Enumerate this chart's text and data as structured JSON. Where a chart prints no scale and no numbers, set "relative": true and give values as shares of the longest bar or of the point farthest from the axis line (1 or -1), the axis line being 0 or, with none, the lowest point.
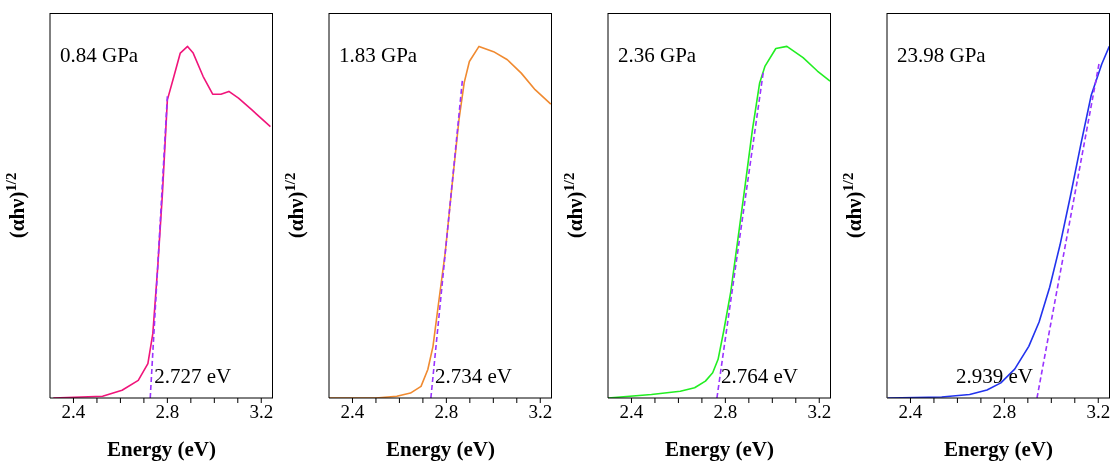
{
  "chart_data": [
    {
      "type": "line",
      "xlabel": "Energy (eV)",
      "ylabel": "(αhν)$^{1/2}$",
      "relative": true,
      "marker": "none",
      "xlim": [
        2.3,
        3.25
      ],
      "xticks": [
        2.4,
        {
          "value": 2.5,
          "label": null
        },
        {
          "value": 2.6,
          "label": null
        },
        {
          "value": 2.7,
          "label": null
        },
        2.8,
        {
          "value": 2.9,
          "label": null
        },
        {
          "value": 3.0,
          "label": null
        },
        {
          "value": 3.1,
          "label": null
        },
        3.2
      ],
      "x": [
        2.314,
        2.524,
        2.607,
        2.676,
        2.717,
        2.738,
        2.759,
        2.779,
        2.8,
        2.828,
        2.855,
        2.886,
        2.91,
        2.952,
        2.993,
        3.028,
        3.062,
        3.103,
        3.159,
        3.239
      ],
      "series": [
        {
          "color": "#f0147a",
          "values": [
            0,
            0.005,
            0.022,
            0.05,
            0.098,
            0.183,
            0.373,
            0.582,
            0.848,
            0.915,
            0.981,
            1.0,
            0.981,
            0.915,
            0.864,
            0.864,
            0.872,
            0.853,
            0.82,
            0.772
          ]
        },
        {
          "type": "line",
          "color": "#9933ff",
          "line_style": "dashed",
          "x": [
            2.727,
            2.8
          ],
          "values": [
            0,
            0.858
          ]
        }
      ],
      "annotations": [
        "0.84 GPa",
        {
          "text": "2.727 eV",
          "x": 2.727,
          "y": 0
        }
      ]
    },
    {
      "type": "line",
      "xlabel": "Energy (eV)",
      "ylabel": "(αhν)$^{1/2}$",
      "relative": true,
      "marker": "none",
      "xlim": [
        2.3,
        3.25
      ],
      "xticks": [
        2.4,
        {
          "value": 2.5,
          "label": null
        },
        {
          "value": 2.6,
          "label": null
        },
        {
          "value": 2.7,
          "label": null
        },
        2.8,
        {
          "value": 2.9,
          "label": null
        },
        {
          "value": 3.0,
          "label": null
        },
        {
          "value": 3.1,
          "label": null
        },
        3.2
      ],
      "x": [
        2.3,
        2.5,
        2.589,
        2.647,
        2.692,
        2.721,
        2.743,
        2.765,
        2.795,
        2.824,
        2.854,
        2.876,
        2.898,
        2.939,
        3.001,
        3.06,
        3.119,
        3.178,
        3.245
      ],
      "series": [
        {
          "color": "#f08a30",
          "values": [
            0,
            0,
            0.005,
            0.014,
            0.033,
            0.081,
            0.147,
            0.261,
            0.413,
            0.603,
            0.793,
            0.897,
            0.957,
            1.0,
            0.985,
            0.962,
            0.924,
            0.877,
            0.836
          ]
        },
        {
          "type": "line",
          "color": "#9933ff",
          "line_style": "dashed",
          "x": [
            2.734,
            2.868
          ],
          "values": [
            0,
            0.902
          ]
        }
      ],
      "annotations": [
        "1.83 GPa",
        {
          "text": "2.734 eV",
          "x": 2.734,
          "y": 0
        }
      ]
    },
    {
      "type": "line",
      "xlabel": "Energy (eV)",
      "ylabel": "(αhν)$^{1/2}$",
      "relative": true,
      "marker": "none",
      "xlim": [
        2.3,
        3.25
      ],
      "xticks": [
        2.4,
        {
          "value": 2.5,
          "label": null
        },
        {
          "value": 2.6,
          "label": null
        },
        {
          "value": 2.7,
          "label": null
        },
        2.8,
        {
          "value": 2.9,
          "label": null
        },
        {
          "value": 3.0,
          "label": null
        },
        {
          "value": 3.1,
          "label": null
        },
        3.2
      ],
      "x": [
        2.3,
        2.485,
        2.608,
        2.669,
        2.715,
        2.746,
        2.769,
        2.792,
        2.823,
        2.854,
        2.885,
        2.915,
        2.946,
        2.969,
        3.015,
        3.062,
        3.131,
        3.192,
        3.246
      ],
      "series": [
        {
          "color": "#22ee22",
          "values": [
            0,
            0.01,
            0.019,
            0.029,
            0.048,
            0.072,
            0.11,
            0.187,
            0.302,
            0.455,
            0.609,
            0.762,
            0.896,
            0.944,
            0.994,
            1.0,
            0.968,
            0.93,
            0.901
          ]
        },
        {
          "type": "line",
          "color": "#9933ff",
          "line_style": "dashed",
          "x": [
            2.764,
            2.961
          ],
          "values": [
            0,
            0.925
          ]
        }
      ],
      "annotations": [
        "2.36 GPa",
        {
          "text": "2.764 eV",
          "x": 2.764,
          "y": 0
        }
      ]
    },
    {
      "type": "line",
      "xlabel": "Energy (eV)",
      "ylabel": "(αhν)$^{1/2}$",
      "relative": true,
      "marker": "none",
      "xlim": [
        2.3,
        3.25
      ],
      "xticks": [
        2.4,
        {
          "value": 2.5,
          "label": null
        },
        {
          "value": 2.6,
          "label": null
        },
        {
          "value": 2.7,
          "label": null
        },
        2.8,
        {
          "value": 2.9,
          "label": null
        },
        {
          "value": 3.0,
          "label": null
        },
        {
          "value": 3.1,
          "label": null
        },
        3.2
      ],
      "x": [
        2.304,
        2.533,
        2.652,
        2.726,
        2.785,
        2.844,
        2.904,
        2.948,
        2.993,
        3.037,
        3.081,
        3.126,
        3.17,
        3.215,
        3.247
      ],
      "series": [
        {
          "color": "#2233ee",
          "values": [
            0,
            0.003,
            0.01,
            0.023,
            0.043,
            0.082,
            0.147,
            0.216,
            0.315,
            0.435,
            0.573,
            0.722,
            0.861,
            0.95,
            1.0
          ]
        },
        {
          "type": "line",
          "color": "#9933ff",
          "line_style": "dashed",
          "x": [
            2.939,
            3.203
          ],
          "values": [
            0,
            0.95
          ]
        }
      ],
      "annotations": [
        "23.98 GPa",
        {
          "text": "2.939 eV",
          "x": 2.939,
          "y": 0
        }
      ]
    }
  ]
}
